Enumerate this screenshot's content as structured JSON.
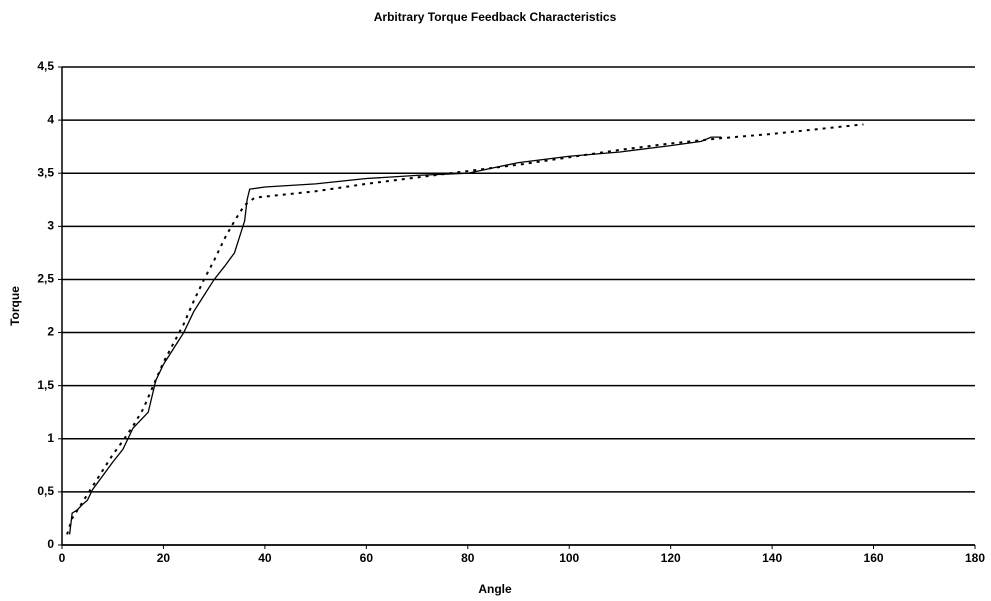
{
  "chart_data": {
    "type": "line",
    "title": "Arbitrary Torque Feedback Characteristics",
    "x_label": "Angle",
    "y_label": "Torque",
    "xlim": [
      0,
      180
    ],
    "xticks": [
      0,
      20,
      40,
      60,
      80,
      100,
      120,
      140,
      160,
      180
    ],
    "ylim": [
      0,
      4.5
    ],
    "yticks": [
      0,
      {
        "value": 0.5,
        "label": "0,5"
      },
      1,
      {
        "value": 1.5,
        "label": "1,5"
      },
      2,
      {
        "value": 2.5,
        "label": "2,5"
      },
      3,
      {
        "value": 3.5,
        "label": "3,5"
      },
      4,
      {
        "value": 4.5,
        "label": "4,5"
      }
    ],
    "grid": true,
    "series": [
      {
        "color": "#000000",
        "dash": false,
        "x": [
          1.5,
          2,
          3,
          4,
          5,
          6,
          8,
          10,
          12,
          13,
          14,
          16,
          17,
          18,
          18.5,
          20,
          22,
          24,
          26,
          28,
          30,
          32,
          34,
          35,
          36,
          36.5,
          37,
          40,
          50,
          60,
          70,
          80,
          85,
          90,
          100,
          110,
          120,
          126,
          128,
          130
        ],
        "values": [
          0.1,
          0.3,
          0.33,
          0.38,
          0.42,
          0.52,
          0.65,
          0.78,
          0.9,
          1.0,
          1.1,
          1.2,
          1.25,
          1.45,
          1.55,
          1.7,
          1.85,
          2.0,
          2.2,
          2.35,
          2.5,
          2.62,
          2.75,
          2.9,
          3.05,
          3.25,
          3.35,
          3.37,
          3.4,
          3.45,
          3.48,
          3.5,
          3.55,
          3.6,
          3.66,
          3.7,
          3.76,
          3.8,
          3.84,
          3.84
        ]
      },
      {
        "color": "#000000",
        "dash": true,
        "x": [
          1,
          2,
          4,
          6,
          8,
          10,
          12,
          14,
          16,
          18,
          20,
          22,
          24,
          26,
          28,
          30,
          32,
          34,
          36,
          38,
          40,
          50,
          60,
          70,
          80,
          90,
          100,
          110,
          120,
          130,
          140,
          150,
          158
        ],
        "values": [
          0.1,
          0.25,
          0.4,
          0.55,
          0.7,
          0.85,
          0.98,
          1.12,
          1.28,
          1.5,
          1.72,
          1.9,
          2.08,
          2.3,
          2.5,
          2.68,
          2.88,
          3.05,
          3.2,
          3.27,
          3.28,
          3.33,
          3.4,
          3.46,
          3.52,
          3.58,
          3.65,
          3.72,
          3.78,
          3.83,
          3.87,
          3.92,
          3.96
        ]
      }
    ]
  }
}
